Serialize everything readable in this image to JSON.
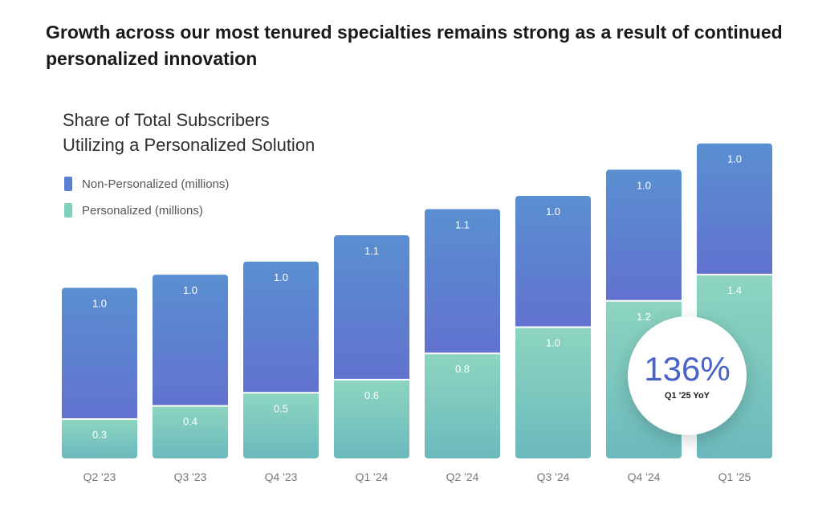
{
  "headline": "Growth across our most tenured specialties remains strong as a result of continued personalized innovation",
  "chart_data": {
    "type": "bar",
    "stacked": true,
    "title_lines": [
      "Share of Total Subscribers",
      "Utilizing a Personalized Solution"
    ],
    "categories": [
      "Q2 '23",
      "Q3 '23",
      "Q4 '23",
      "Q1 '24",
      "Q2 '24",
      "Q3 '24",
      "Q4 '24",
      "Q1 '25"
    ],
    "series": [
      {
        "name": "Personalized (millions)",
        "values": [
          0.3,
          0.4,
          0.5,
          0.6,
          0.8,
          1.0,
          1.2,
          1.4
        ],
        "labels": [
          "0.3",
          "0.4",
          "0.5",
          "0.6",
          "0.8",
          "1.0",
          "1.2",
          "1.4"
        ],
        "color_top": "#8dd5c0",
        "color_bottom": "#6cb9bd"
      },
      {
        "name": "Non-Personalized (millions)",
        "values": [
          1.0,
          1.0,
          1.0,
          1.1,
          1.1,
          1.0,
          1.0,
          1.0
        ],
        "labels": [
          "1.0",
          "1.0",
          "1.0",
          "1.1",
          "1.1",
          "1.0",
          "1.0",
          "1.0"
        ],
        "color_top": "#5a8fd0",
        "color_bottom": "#6172cf"
      }
    ],
    "legend": {
      "position": "top-left",
      "items": [
        {
          "label": "Non-Personalized (millions)",
          "color": "#5b7fd2"
        },
        {
          "label": "Personalized (millions)",
          "color": "#7fd0bd"
        }
      ]
    },
    "grid": false,
    "callout": {
      "value": "136%",
      "label": "Q1 '25 YoY"
    }
  }
}
